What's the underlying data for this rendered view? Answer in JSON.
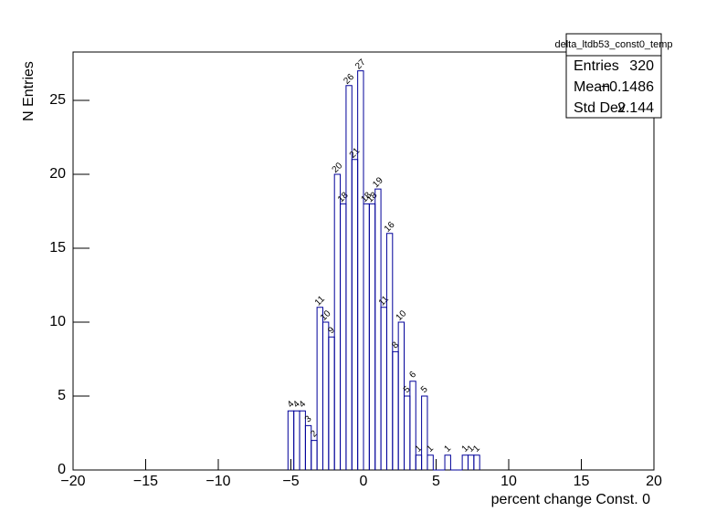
{
  "chart_data": {
    "type": "histogram",
    "y_label": "N Entries",
    "x_label": "percent change Const. 0",
    "bins": [
      -5.2,
      -4.8,
      -4.4,
      -4,
      -3.6,
      -3.2,
      -2.8,
      -2.4,
      -2,
      -1.6,
      -1.2,
      -0.8,
      -0.4,
      0,
      0.4,
      0.8,
      1.2,
      1.6,
      2,
      2.4,
      2.8,
      3.2,
      3.6,
      4,
      4.4,
      4.8,
      5.2,
      5.6,
      6,
      6.4,
      6.8,
      7.2,
      7.6,
      8
    ],
    "values": [
      4,
      4,
      4,
      3,
      2,
      11,
      10,
      9,
      20,
      18,
      26,
      21,
      27,
      18,
      18,
      19,
      11,
      16,
      8,
      10,
      5,
      6,
      1,
      5,
      1,
      0,
      0,
      1,
      0,
      0,
      1,
      1,
      1
    ],
    "value_labels": [
      "4",
      "4",
      "4",
      "3",
      "2",
      "11",
      "10",
      "9",
      "20",
      "18",
      "26",
      "21",
      "27",
      "18",
      "18",
      "19",
      "11",
      "16",
      "8",
      "10",
      "5",
      "6",
      "1",
      "5",
      "1",
      null,
      null,
      "1",
      null,
      null,
      "1",
      "1",
      "1"
    ],
    "color": "#000099",
    "xlim": [
      -20,
      20
    ],
    "xticks": [
      {
        "value": -20,
        "label": "−20"
      },
      {
        "value": -15,
        "label": "−15"
      },
      {
        "value": -10,
        "label": "−10"
      },
      {
        "value": -5,
        "label": "−5"
      },
      0,
      5,
      10,
      15,
      20
    ],
    "ylim": [
      0,
      28.27
    ],
    "yticks": [
      0,
      5,
      10,
      15,
      20,
      25
    ],
    "stats": {
      "title": "delta_ltdb53_const0_temp",
      "rows": [
        {
          "name": "Entries",
          "value": 320
        },
        {
          "name": "Mean",
          "value": {
            "value": -0.1486,
            "label": "−0.1486"
          }
        },
        {
          "name": "Std Dev",
          "value": 2.144
        }
      ]
    }
  }
}
